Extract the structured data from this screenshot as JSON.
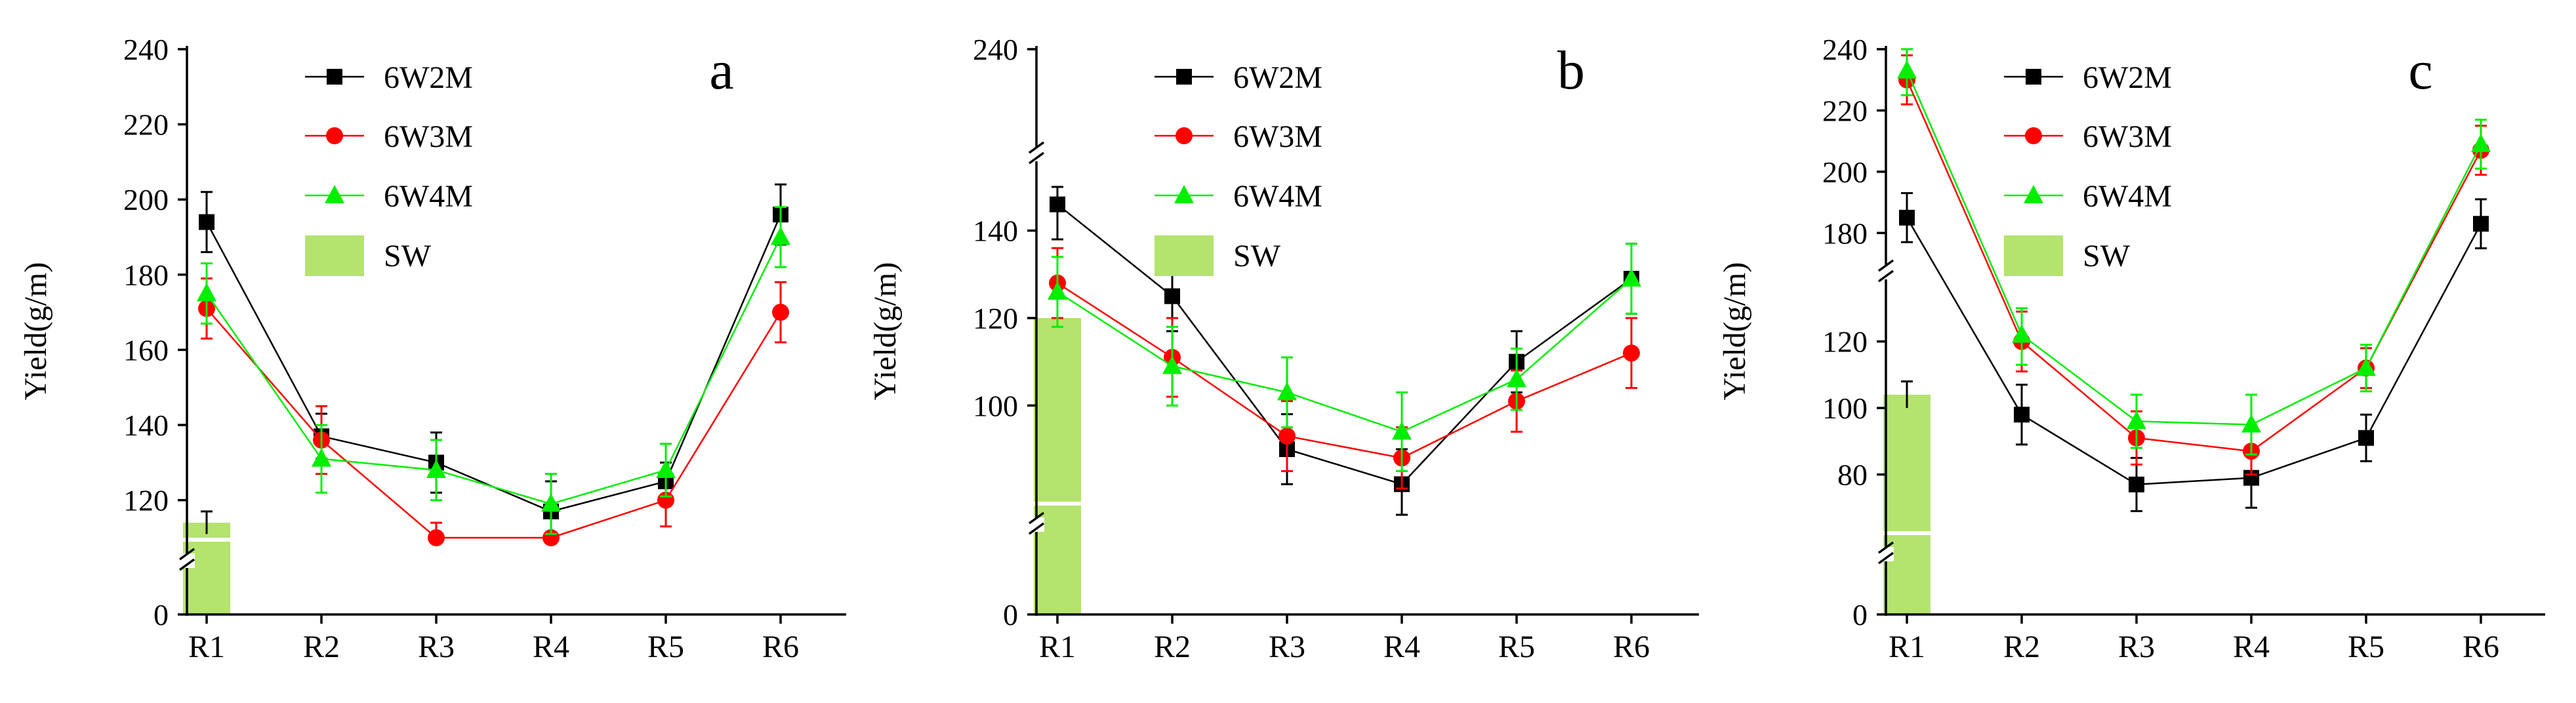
{
  "colors": {
    "6W2M": "#000000",
    "6W3M": "#ff0000",
    "6W4M": "#00ee00",
    "SW": "#b4e36e",
    "break_mark": "#ffffff"
  },
  "chart_data": [
    {
      "type": "line",
      "panel_label": "a",
      "ylabel": "Yield(g/m)",
      "xlabel": "",
      "categories": [
        "R1",
        "R2",
        "R3",
        "R4",
        "R5",
        "R6"
      ],
      "axis_break": true,
      "lower_ticks": [
        0
      ],
      "upper_ylim": [
        110,
        240
      ],
      "upper_ticks": [
        120,
        140,
        160,
        180,
        200,
        220,
        240
      ],
      "legend_position": "top-left",
      "series": [
        {
          "name": "6W2M",
          "marker": "square",
          "values": [
            194,
            137,
            130,
            117,
            125,
            196
          ],
          "errors": [
            8,
            6,
            8,
            8,
            5,
            8
          ]
        },
        {
          "name": "6W3M",
          "marker": "circle",
          "values": [
            171,
            136,
            106,
            102,
            120,
            170
          ],
          "errors": [
            8,
            9,
            8,
            7,
            7,
            8
          ]
        },
        {
          "name": "6W4M",
          "marker": "triangle",
          "values": [
            175,
            131,
            128,
            119,
            128,
            190
          ],
          "errors": [
            8,
            9,
            8,
            8,
            7,
            8
          ]
        }
      ],
      "bar": {
        "name": "SW",
        "category": "R1",
        "value": 114,
        "error": 3
      }
    },
    {
      "type": "line",
      "panel_label": "b",
      "ylabel": "Yield(g/m)",
      "xlabel": "",
      "categories": [
        "R1",
        "R2",
        "R3",
        "R4",
        "R5",
        "R6"
      ],
      "axis_break": true,
      "lower_ticks": [
        0
      ],
      "upper_ylim": [
        75,
        150
      ],
      "upper_ticks": [
        100,
        120,
        140
      ],
      "top_tick": 240,
      "legend_position": "top-left",
      "series": [
        {
          "name": "6W2M",
          "marker": "square",
          "values": [
            146,
            125,
            90,
            82,
            110,
            129
          ],
          "errors": [
            8,
            8,
            8,
            8,
            7,
            8
          ]
        },
        {
          "name": "6W3M",
          "marker": "circle",
          "values": [
            128,
            111,
            93,
            88,
            101,
            112
          ],
          "errors": [
            8,
            9,
            8,
            7,
            7,
            8
          ]
        },
        {
          "name": "6W4M",
          "marker": "triangle",
          "values": [
            126,
            109,
            103,
            94,
            106,
            129
          ],
          "errors": [
            8,
            9,
            8,
            9,
            7,
            8
          ]
        }
      ],
      "bar": {
        "name": "SW",
        "category": "R1",
        "value": 120,
        "error": 0
      }
    },
    {
      "type": "line",
      "panel_label": "c",
      "ylabel": "Yield(g/m)",
      "xlabel": "",
      "categories": [
        "R1",
        "R2",
        "R3",
        "R4",
        "R5",
        "R6"
      ],
      "axis_break": true,
      "lower_ticks": [
        0
      ],
      "middle_ylim": [
        60,
        130
      ],
      "middle_ticks": [
        80,
        100,
        120
      ],
      "upper_ylim": [
        170,
        240
      ],
      "upper_ticks": [
        180,
        200,
        220,
        240
      ],
      "legend_position": "top-left",
      "series": [
        {
          "name": "6W2M",
          "marker": "square",
          "values": [
            185,
            98,
            77,
            79,
            91,
            183
          ],
          "errors": [
            8,
            9,
            8,
            9,
            7,
            8
          ]
        },
        {
          "name": "6W3M",
          "marker": "circle",
          "values": [
            230,
            120,
            91,
            87,
            112,
            207
          ],
          "errors": [
            8,
            9,
            8,
            7,
            6,
            8
          ]
        },
        {
          "name": "6W4M",
          "marker": "triangle",
          "values": [
            233,
            122,
            96,
            95,
            112,
            209
          ],
          "errors": [
            8,
            9,
            8,
            9,
            7,
            8
          ]
        }
      ],
      "bar": {
        "name": "SW",
        "category": "R1",
        "value": 104,
        "error": 4
      }
    }
  ]
}
